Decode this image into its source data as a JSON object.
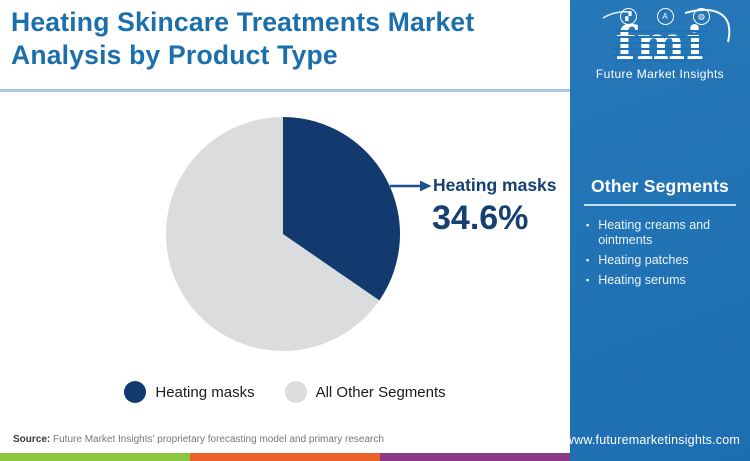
{
  "header": {
    "title": "Heating Skincare Treatments Market Analysis by Product Type",
    "title_color": "#1C6FAD"
  },
  "logo": {
    "brand": "fmi",
    "subtitle": "Future Market Insights",
    "icons": [
      {
        "name": "map-icon",
        "glyph": "▞"
      },
      {
        "name": "compass-icon",
        "glyph": "A"
      },
      {
        "name": "globe-icon",
        "glyph": "◍"
      }
    ]
  },
  "chart_data": {
    "type": "pie",
    "title": "Heating Skincare Treatments Market Analysis by Product Type",
    "slices": [
      {
        "label": "Heating masks",
        "value": 34.6,
        "color": "#133A6E"
      },
      {
        "label": "All Other Segments",
        "value": 65.4,
        "color": "#DBDCDD"
      }
    ],
    "start_angle_deg": 0,
    "direction": "clockwise",
    "annotation": {
      "label": "Heating masks",
      "value_text": "34.6%",
      "color": "#16406F"
    },
    "legend_position": "bottom"
  },
  "legend": {
    "items": [
      {
        "label": "Heating masks",
        "color": "#133A6E"
      },
      {
        "label": "All Other Segments",
        "color": "#DBDCDD"
      }
    ]
  },
  "sidebar": {
    "heading": "Other Segments",
    "items": [
      "Heating creams and ointments",
      "Heating patches",
      "Heating serums"
    ],
    "website": "www.futuremarketinsights.com",
    "bg_color": "#1E72B6"
  },
  "footer": {
    "source_label": "Source:",
    "source_text": " Future Market Insights' proprietary forecasting model and primary research",
    "strip_colors": [
      "#8CC63F",
      "#E8622A",
      "#8C3A88"
    ]
  }
}
